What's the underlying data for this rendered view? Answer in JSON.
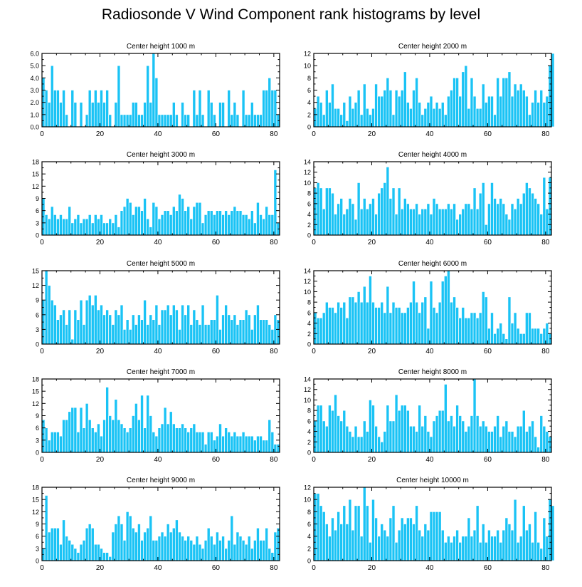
{
  "page": {
    "title": "Radiosonde V Wind Component rank histograms by level"
  },
  "colors": {
    "bar": "#1AC3F5",
    "bar_edge": "#ffffff",
    "axis": "#000000"
  },
  "chart_data": [
    {
      "type": "bar",
      "title": "Center height 1000 m",
      "xlim": [
        0,
        82
      ],
      "ylim": [
        0,
        6
      ],
      "xticks": [
        0,
        20,
        40,
        60,
        80
      ],
      "yticks": [
        0,
        1,
        2,
        3,
        4,
        5,
        6
      ],
      "ytick_labels": [
        "0.0",
        "1.0",
        "2.0",
        "3.0",
        "4.0",
        "5.0",
        "6.0"
      ],
      "values": [
        4,
        3,
        2,
        5,
        3,
        3,
        2,
        3,
        1,
        0,
        3,
        2,
        0,
        2,
        0,
        1,
        3,
        2,
        3,
        2,
        3,
        2,
        3,
        1,
        0,
        2,
        5,
        1,
        1,
        1,
        1,
        2,
        2,
        1,
        1,
        2,
        5,
        2,
        6,
        4,
        1,
        1,
        1,
        1,
        1,
        2,
        1,
        0,
        2,
        1,
        1,
        0,
        3,
        1,
        3,
        1,
        0,
        3,
        2,
        1,
        0,
        2,
        2,
        0,
        3,
        1,
        2,
        1,
        0,
        3,
        1,
        1,
        2,
        1,
        1,
        1,
        3,
        3,
        4,
        3,
        3,
        1
      ]
    },
    {
      "type": "bar",
      "title": "Center height 2000 m",
      "xlim": [
        0,
        82
      ],
      "ylim": [
        0,
        12
      ],
      "xticks": [
        0,
        20,
        40,
        60,
        80
      ],
      "yticks": [
        0,
        2,
        4,
        6,
        8,
        10,
        12
      ],
      "ytick_labels": [
        "0",
        "2",
        "4",
        "6",
        "8",
        "10",
        "12"
      ],
      "values": [
        3,
        5,
        4,
        2,
        6,
        4,
        7,
        3,
        3,
        2,
        4,
        1,
        5,
        3,
        4,
        6,
        2,
        7,
        3,
        2,
        3,
        7,
        5,
        5,
        6,
        8,
        6,
        2,
        6,
        5,
        6,
        9,
        4,
        3,
        6,
        8,
        4,
        2,
        3,
        4,
        5,
        3,
        4,
        3,
        4,
        2,
        5,
        6,
        8,
        8,
        5,
        9,
        10,
        3,
        8,
        5,
        3,
        3,
        7,
        4,
        5,
        5,
        2,
        8,
        5,
        8,
        8,
        9,
        5,
        7,
        6,
        7,
        6,
        5,
        2,
        4,
        6,
        4,
        6,
        4,
        5,
        10,
        12
      ]
    },
    {
      "type": "bar",
      "title": "Center height 3000 m",
      "xlim": [
        0,
        82
      ],
      "ylim": [
        0,
        18
      ],
      "xticks": [
        0,
        20,
        40,
        60,
        80
      ],
      "yticks": [
        0,
        3,
        6,
        9,
        12,
        15,
        18
      ],
      "ytick_labels": [
        "0",
        "3",
        "6",
        "9",
        "12",
        "15",
        "18"
      ],
      "values": [
        9,
        5,
        4,
        7,
        5,
        4,
        5,
        4,
        4,
        7,
        3,
        4,
        5,
        3,
        4,
        4,
        5,
        3,
        5,
        4,
        5,
        3,
        3,
        4,
        3,
        5,
        2,
        6,
        7,
        9,
        8,
        5,
        7,
        7,
        6,
        9,
        4,
        2,
        8,
        7,
        4,
        5,
        6,
        6,
        5,
        7,
        6,
        10,
        9,
        6,
        7,
        4,
        7,
        8,
        8,
        3,
        5,
        6,
        6,
        5,
        6,
        6,
        5,
        6,
        5,
        6,
        7,
        6,
        6,
        5,
        5,
        4,
        6,
        3,
        8,
        5,
        4,
        7,
        5,
        5,
        16,
        3
      ]
    },
    {
      "type": "bar",
      "title": "Center height 4000 m",
      "xlim": [
        0,
        82
      ],
      "ylim": [
        0,
        14
      ],
      "xticks": [
        0,
        20,
        40,
        60,
        80
      ],
      "yticks": [
        0,
        2,
        4,
        6,
        8,
        10,
        12,
        14
      ],
      "ytick_labels": [
        "0",
        "2",
        "4",
        "6",
        "8",
        "10",
        "12",
        "14"
      ],
      "values": [
        9,
        10,
        9,
        5,
        9,
        9,
        8,
        4,
        6,
        7,
        4,
        5,
        7,
        6,
        3,
        10,
        5,
        7,
        5,
        6,
        7,
        4,
        8,
        9,
        10,
        13,
        7,
        9,
        4,
        9,
        5,
        7,
        6,
        5,
        5,
        6,
        4,
        5,
        5,
        6,
        4,
        7,
        6,
        5,
        5,
        5,
        6,
        5,
        6,
        3,
        4,
        5,
        6,
        6,
        5,
        9,
        5,
        8,
        10,
        2,
        6,
        10,
        7,
        6,
        7,
        6,
        4,
        3,
        6,
        5,
        7,
        6,
        8,
        10,
        9,
        8,
        7,
        6,
        4,
        11,
        5,
        11
      ]
    },
    {
      "type": "bar",
      "title": "Center height 5000 m",
      "xlim": [
        0,
        82
      ],
      "ylim": [
        0,
        15
      ],
      "xticks": [
        0,
        20,
        40,
        60,
        80
      ],
      "yticks": [
        0,
        3,
        6,
        9,
        12,
        15
      ],
      "ytick_labels": [
        "0",
        "3",
        "6",
        "9",
        "12",
        "15"
      ],
      "values": [
        9,
        15,
        12,
        9,
        8,
        5,
        6,
        7,
        4,
        7,
        1,
        7,
        5,
        9,
        4,
        9,
        10,
        8,
        10,
        7,
        8,
        6,
        7,
        6,
        4,
        7,
        6,
        8,
        3,
        5,
        3,
        6,
        4,
        6,
        5,
        9,
        4,
        6,
        5,
        8,
        4,
        7,
        7,
        8,
        6,
        8,
        7,
        3,
        8,
        6,
        8,
        4,
        7,
        5,
        4,
        8,
        4,
        4,
        5,
        5,
        10,
        3,
        6,
        8,
        6,
        5,
        6,
        4,
        5,
        5,
        7,
        6,
        3,
        6,
        8,
        5,
        5,
        5,
        4,
        3,
        6,
        5
      ]
    },
    {
      "type": "bar",
      "title": "Center height 6000 m",
      "xlim": [
        0,
        82
      ],
      "ylim": [
        0,
        14
      ],
      "xticks": [
        0,
        20,
        40,
        60,
        80
      ],
      "yticks": [
        0,
        2,
        4,
        6,
        8,
        10,
        12,
        14
      ],
      "ytick_labels": [
        "0",
        "2",
        "4",
        "6",
        "8",
        "10",
        "12",
        "14"
      ],
      "values": [
        6,
        5,
        5,
        6,
        8,
        7,
        7,
        6,
        8,
        7,
        8,
        5,
        9,
        9,
        8,
        10,
        8,
        11,
        8,
        13,
        8,
        7,
        7,
        8,
        6,
        11,
        6,
        8,
        7,
        7,
        6,
        6,
        7,
        8,
        12,
        8,
        6,
        8,
        9,
        3,
        12,
        7,
        6,
        8,
        12,
        13,
        14,
        8,
        9,
        7,
        5,
        7,
        5,
        5,
        6,
        6,
        5,
        6,
        10,
        9,
        3,
        6,
        2,
        3,
        4,
        2,
        1,
        9,
        4,
        6,
        3,
        2,
        2,
        6,
        6,
        3,
        3,
        3,
        2,
        3,
        4,
        2
      ]
    },
    {
      "type": "bar",
      "title": "Center height 7000 m",
      "xlim": [
        0,
        82
      ],
      "ylim": [
        0,
        18
      ],
      "xticks": [
        0,
        20,
        40,
        60,
        80
      ],
      "yticks": [
        0,
        3,
        6,
        9,
        12,
        15,
        18
      ],
      "ytick_labels": [
        "0",
        "3",
        "6",
        "9",
        "12",
        "15",
        "18"
      ],
      "values": [
        8,
        6,
        3,
        5,
        5,
        5,
        4,
        8,
        8,
        10,
        11,
        11,
        5,
        11,
        6,
        12,
        8,
        6,
        5,
        7,
        4,
        8,
        16,
        9,
        8,
        13,
        8,
        7,
        6,
        5,
        6,
        9,
        12,
        8,
        14,
        6,
        14,
        9,
        5,
        4,
        6,
        7,
        11,
        7,
        10,
        7,
        6,
        6,
        7,
        6,
        5,
        6,
        7,
        5,
        5,
        5,
        2,
        5,
        5,
        3,
        4,
        7,
        4,
        6,
        5,
        4,
        5,
        4,
        4,
        5,
        4,
        4,
        4,
        3,
        4,
        4,
        3,
        3,
        8,
        5,
        2,
        2
      ]
    },
    {
      "type": "bar",
      "title": "Center height 8000 m",
      "xlim": [
        0,
        82
      ],
      "ylim": [
        0,
        14
      ],
      "xticks": [
        0,
        20,
        40,
        60,
        80
      ],
      "yticks": [
        0,
        2,
        4,
        6,
        8,
        10,
        12,
        14
      ],
      "ytick_labels": [
        "0",
        "2",
        "4",
        "6",
        "8",
        "10",
        "12",
        "14"
      ],
      "values": [
        6,
        9,
        9,
        6,
        5,
        9,
        8,
        11,
        7,
        6,
        8,
        5,
        4,
        3,
        5,
        3,
        3,
        6,
        4,
        10,
        9,
        5,
        3,
        2,
        4,
        9,
        6,
        6,
        11,
        8,
        9,
        9,
        8,
        5,
        5,
        4,
        9,
        5,
        7,
        4,
        3,
        6,
        7,
        8,
        8,
        13,
        6,
        7,
        5,
        9,
        7,
        6,
        4,
        5,
        7,
        14,
        7,
        5,
        6,
        5,
        4,
        4,
        5,
        7,
        3,
        5,
        6,
        4,
        4,
        3,
        5,
        5,
        8,
        4,
        5,
        6,
        3,
        1,
        7,
        5,
        4,
        3
      ]
    },
    {
      "type": "bar",
      "title": "Center height 9000 m",
      "xlim": [
        0,
        82
      ],
      "ylim": [
        0,
        18
      ],
      "xticks": [
        0,
        20,
        40,
        60,
        80
      ],
      "yticks": [
        0,
        3,
        6,
        9,
        12,
        15,
        18
      ],
      "ytick_labels": [
        "0",
        "3",
        "6",
        "9",
        "12",
        "15",
        "18"
      ],
      "values": [
        3,
        16,
        7,
        8,
        8,
        8,
        4,
        10,
        6,
        5,
        4,
        3,
        2,
        4,
        5,
        8,
        9,
        8,
        4,
        4,
        3,
        2,
        2,
        1,
        7,
        9,
        11,
        9,
        5,
        12,
        11,
        8,
        7,
        9,
        5,
        7,
        8,
        11,
        5,
        5,
        6,
        7,
        6,
        9,
        7,
        8,
        10,
        7,
        6,
        5,
        6,
        5,
        4,
        6,
        4,
        3,
        5,
        8,
        6,
        4,
        7,
        5,
        6,
        3,
        5,
        11,
        4,
        7,
        6,
        5,
        4,
        6,
        3,
        5,
        8,
        5,
        5,
        8,
        3,
        2,
        7,
        8
      ]
    },
    {
      "type": "bar",
      "title": "Center height 10000 m",
      "xlim": [
        0,
        82
      ],
      "ylim": [
        0,
        12
      ],
      "xticks": [
        0,
        20,
        40,
        60,
        80
      ],
      "yticks": [
        0,
        2,
        4,
        6,
        8,
        10,
        12
      ],
      "ytick_labels": [
        "0",
        "2",
        "4",
        "6",
        "8",
        "10",
        "12"
      ],
      "values": [
        11,
        11,
        9,
        8,
        6,
        4,
        7,
        5,
        8,
        6,
        9,
        6,
        10,
        5,
        9,
        9,
        4,
        12,
        9,
        3,
        10,
        7,
        4,
        6,
        5,
        4,
        7,
        9,
        3,
        5,
        7,
        6,
        7,
        7,
        6,
        9,
        5,
        4,
        6,
        5,
        8,
        8,
        8,
        8,
        5,
        3,
        4,
        3,
        4,
        5,
        3,
        4,
        4,
        7,
        4,
        5,
        9,
        3,
        6,
        3,
        5,
        4,
        4,
        5,
        3,
        5,
        7,
        6,
        5,
        10,
        3,
        4,
        9,
        5,
        6,
        3,
        8,
        3,
        2,
        7,
        4,
        10,
        9
      ]
    }
  ]
}
